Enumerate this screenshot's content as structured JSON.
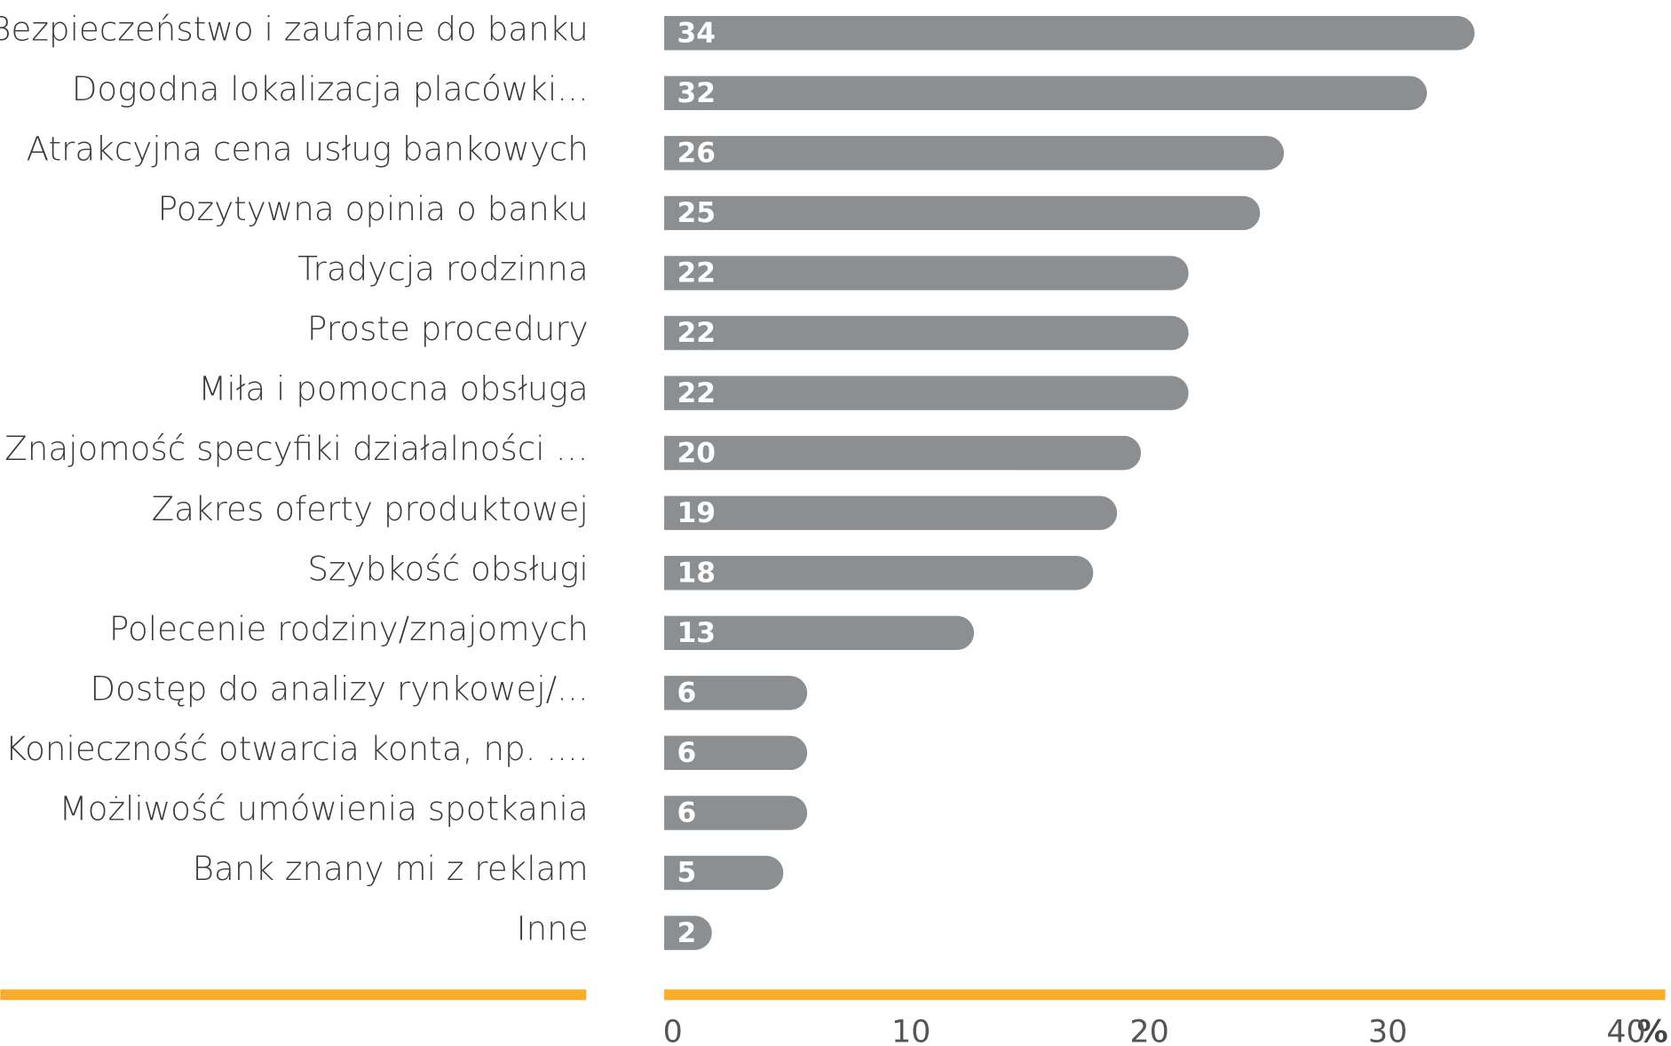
{
  "chart_data": {
    "type": "bar",
    "orientation": "horizontal",
    "categories": [
      "Bezpieczeństwo i zaufanie do banku",
      "Dogodna lokalizacja placówki...",
      "Atrakcyjna cena usług bankowych",
      "Pozytywna opinia o banku",
      "Tradycja rodzinna",
      "Proste procedury",
      "Miła i pomocna obsługa",
      "Znajomość specyfiki działalności …",
      "Zakres oferty produktowej",
      "Szybkość obsługi",
      "Polecenie rodziny/znajomych",
      "Dostęp do analizy rynkowej/...",
      "Konieczność otwarcia konta, np. ....",
      "Możliwość umówienia spotkania",
      "Bank znany mi z reklam",
      "Inne"
    ],
    "values": [
      34,
      32,
      26,
      25,
      22,
      22,
      22,
      20,
      19,
      18,
      13,
      6,
      6,
      6,
      5,
      2
    ],
    "color": "#8c8f92",
    "axis_color": "#f9ad2a",
    "xlim": [
      0,
      42
    ],
    "xticks": [
      0,
      10,
      20,
      30,
      40
    ],
    "x_label": "%"
  }
}
